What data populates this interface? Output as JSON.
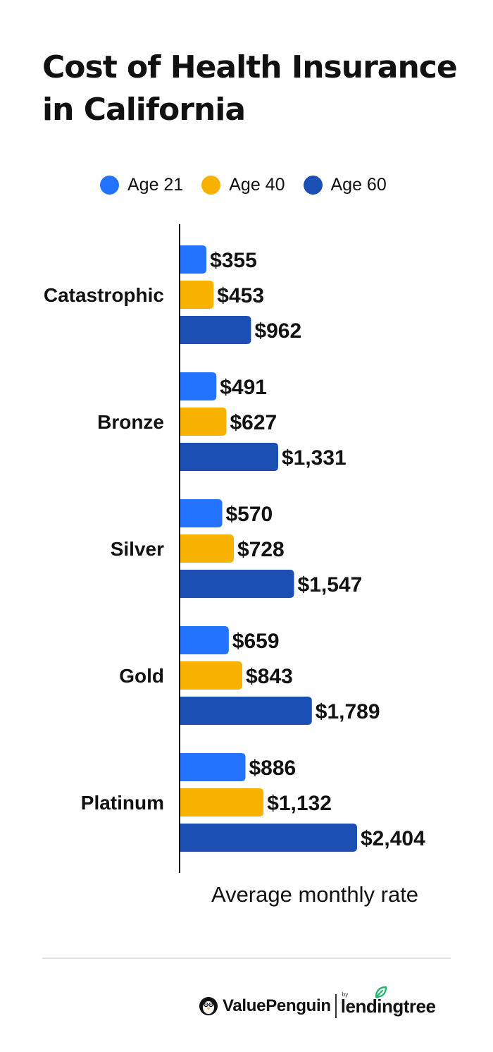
{
  "title": "Cost of Health Insurance in California",
  "colors": {
    "age21": "#2473ff",
    "age40": "#f9b100",
    "age60": "#1c4fb3",
    "axis": "#111111",
    "divider": "#e2e2e2",
    "leaf": "#1fb76a"
  },
  "chart_data": {
    "type": "bar",
    "orientation": "horizontal",
    "title": "Cost of Health Insurance in California",
    "xlabel": "Average monthly rate",
    "ylabel": "",
    "categories": [
      "Catastrophic",
      "Bronze",
      "Silver",
      "Gold",
      "Platinum"
    ],
    "series": [
      {
        "name": "Age 21",
        "color": "#2473ff",
        "values": [
          355,
          491,
          570,
          659,
          886
        ],
        "labels": [
          "$355",
          "$491",
          "$570",
          "$659",
          "$886"
        ]
      },
      {
        "name": "Age 40",
        "color": "#f9b100",
        "values": [
          453,
          627,
          728,
          843,
          1132
        ],
        "labels": [
          "$453",
          "$627",
          "$728",
          "$843",
          "$1,132"
        ]
      },
      {
        "name": "Age 60",
        "color": "#1c4fb3",
        "values": [
          962,
          1331,
          1547,
          1789,
          2404
        ],
        "labels": [
          "$962",
          "$1,331",
          "$1,547",
          "$1,789",
          "$2,404"
        ]
      }
    ],
    "xlim": [
      0,
      2404
    ],
    "legend_position": "top",
    "grid": false
  },
  "footer": {
    "brand_primary": "ValuePenguin",
    "brand_by": "by",
    "brand_secondary": "lendingtree",
    "icons": [
      "penguin-icon",
      "leaf-icon"
    ]
  }
}
